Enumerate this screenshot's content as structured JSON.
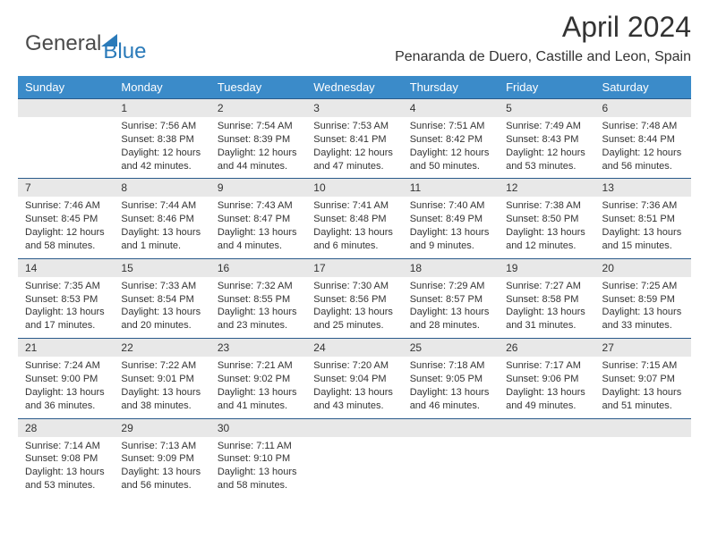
{
  "brand": {
    "part1": "General",
    "part2": "Blue"
  },
  "title": "April 2024",
  "location": "Penaranda de Duero, Castille and Leon, Spain",
  "dow": [
    "Sunday",
    "Monday",
    "Tuesday",
    "Wednesday",
    "Thursday",
    "Friday",
    "Saturday"
  ],
  "colors": {
    "header_bg": "#3b8bc9",
    "header_text": "#ffffff",
    "daynum_bg": "#e8e8e8",
    "border": "#2a5a8a",
    "text": "#333333",
    "brand_gray": "#4a4a4a",
    "brand_blue": "#2a7ab9",
    "background": "#ffffff"
  },
  "typography": {
    "title_fontsize": 32,
    "location_fontsize": 16,
    "dow_fontsize": 13,
    "daynum_fontsize": 12,
    "cell_fontsize": 11
  },
  "weeks": [
    [
      {
        "num": "",
        "lines": [
          "",
          "",
          "",
          ""
        ]
      },
      {
        "num": "1",
        "lines": [
          "Sunrise: 7:56 AM",
          "Sunset: 8:38 PM",
          "Daylight: 12 hours",
          "and 42 minutes."
        ]
      },
      {
        "num": "2",
        "lines": [
          "Sunrise: 7:54 AM",
          "Sunset: 8:39 PM",
          "Daylight: 12 hours",
          "and 44 minutes."
        ]
      },
      {
        "num": "3",
        "lines": [
          "Sunrise: 7:53 AM",
          "Sunset: 8:41 PM",
          "Daylight: 12 hours",
          "and 47 minutes."
        ]
      },
      {
        "num": "4",
        "lines": [
          "Sunrise: 7:51 AM",
          "Sunset: 8:42 PM",
          "Daylight: 12 hours",
          "and 50 minutes."
        ]
      },
      {
        "num": "5",
        "lines": [
          "Sunrise: 7:49 AM",
          "Sunset: 8:43 PM",
          "Daylight: 12 hours",
          "and 53 minutes."
        ]
      },
      {
        "num": "6",
        "lines": [
          "Sunrise: 7:48 AM",
          "Sunset: 8:44 PM",
          "Daylight: 12 hours",
          "and 56 minutes."
        ]
      }
    ],
    [
      {
        "num": "7",
        "lines": [
          "Sunrise: 7:46 AM",
          "Sunset: 8:45 PM",
          "Daylight: 12 hours",
          "and 58 minutes."
        ]
      },
      {
        "num": "8",
        "lines": [
          "Sunrise: 7:44 AM",
          "Sunset: 8:46 PM",
          "Daylight: 13 hours",
          "and 1 minute."
        ]
      },
      {
        "num": "9",
        "lines": [
          "Sunrise: 7:43 AM",
          "Sunset: 8:47 PM",
          "Daylight: 13 hours",
          "and 4 minutes."
        ]
      },
      {
        "num": "10",
        "lines": [
          "Sunrise: 7:41 AM",
          "Sunset: 8:48 PM",
          "Daylight: 13 hours",
          "and 6 minutes."
        ]
      },
      {
        "num": "11",
        "lines": [
          "Sunrise: 7:40 AM",
          "Sunset: 8:49 PM",
          "Daylight: 13 hours",
          "and 9 minutes."
        ]
      },
      {
        "num": "12",
        "lines": [
          "Sunrise: 7:38 AM",
          "Sunset: 8:50 PM",
          "Daylight: 13 hours",
          "and 12 minutes."
        ]
      },
      {
        "num": "13",
        "lines": [
          "Sunrise: 7:36 AM",
          "Sunset: 8:51 PM",
          "Daylight: 13 hours",
          "and 15 minutes."
        ]
      }
    ],
    [
      {
        "num": "14",
        "lines": [
          "Sunrise: 7:35 AM",
          "Sunset: 8:53 PM",
          "Daylight: 13 hours",
          "and 17 minutes."
        ]
      },
      {
        "num": "15",
        "lines": [
          "Sunrise: 7:33 AM",
          "Sunset: 8:54 PM",
          "Daylight: 13 hours",
          "and 20 minutes."
        ]
      },
      {
        "num": "16",
        "lines": [
          "Sunrise: 7:32 AM",
          "Sunset: 8:55 PM",
          "Daylight: 13 hours",
          "and 23 minutes."
        ]
      },
      {
        "num": "17",
        "lines": [
          "Sunrise: 7:30 AM",
          "Sunset: 8:56 PM",
          "Daylight: 13 hours",
          "and 25 minutes."
        ]
      },
      {
        "num": "18",
        "lines": [
          "Sunrise: 7:29 AM",
          "Sunset: 8:57 PM",
          "Daylight: 13 hours",
          "and 28 minutes."
        ]
      },
      {
        "num": "19",
        "lines": [
          "Sunrise: 7:27 AM",
          "Sunset: 8:58 PM",
          "Daylight: 13 hours",
          "and 31 minutes."
        ]
      },
      {
        "num": "20",
        "lines": [
          "Sunrise: 7:25 AM",
          "Sunset: 8:59 PM",
          "Daylight: 13 hours",
          "and 33 minutes."
        ]
      }
    ],
    [
      {
        "num": "21",
        "lines": [
          "Sunrise: 7:24 AM",
          "Sunset: 9:00 PM",
          "Daylight: 13 hours",
          "and 36 minutes."
        ]
      },
      {
        "num": "22",
        "lines": [
          "Sunrise: 7:22 AM",
          "Sunset: 9:01 PM",
          "Daylight: 13 hours",
          "and 38 minutes."
        ]
      },
      {
        "num": "23",
        "lines": [
          "Sunrise: 7:21 AM",
          "Sunset: 9:02 PM",
          "Daylight: 13 hours",
          "and 41 minutes."
        ]
      },
      {
        "num": "24",
        "lines": [
          "Sunrise: 7:20 AM",
          "Sunset: 9:04 PM",
          "Daylight: 13 hours",
          "and 43 minutes."
        ]
      },
      {
        "num": "25",
        "lines": [
          "Sunrise: 7:18 AM",
          "Sunset: 9:05 PM",
          "Daylight: 13 hours",
          "and 46 minutes."
        ]
      },
      {
        "num": "26",
        "lines": [
          "Sunrise: 7:17 AM",
          "Sunset: 9:06 PM",
          "Daylight: 13 hours",
          "and 49 minutes."
        ]
      },
      {
        "num": "27",
        "lines": [
          "Sunrise: 7:15 AM",
          "Sunset: 9:07 PM",
          "Daylight: 13 hours",
          "and 51 minutes."
        ]
      }
    ],
    [
      {
        "num": "28",
        "lines": [
          "Sunrise: 7:14 AM",
          "Sunset: 9:08 PM",
          "Daylight: 13 hours",
          "and 53 minutes."
        ]
      },
      {
        "num": "29",
        "lines": [
          "Sunrise: 7:13 AM",
          "Sunset: 9:09 PM",
          "Daylight: 13 hours",
          "and 56 minutes."
        ]
      },
      {
        "num": "30",
        "lines": [
          "Sunrise: 7:11 AM",
          "Sunset: 9:10 PM",
          "Daylight: 13 hours",
          "and 58 minutes."
        ]
      },
      {
        "num": "",
        "lines": [
          "",
          "",
          "",
          ""
        ]
      },
      {
        "num": "",
        "lines": [
          "",
          "",
          "",
          ""
        ]
      },
      {
        "num": "",
        "lines": [
          "",
          "",
          "",
          ""
        ]
      },
      {
        "num": "",
        "lines": [
          "",
          "",
          "",
          ""
        ]
      }
    ]
  ]
}
